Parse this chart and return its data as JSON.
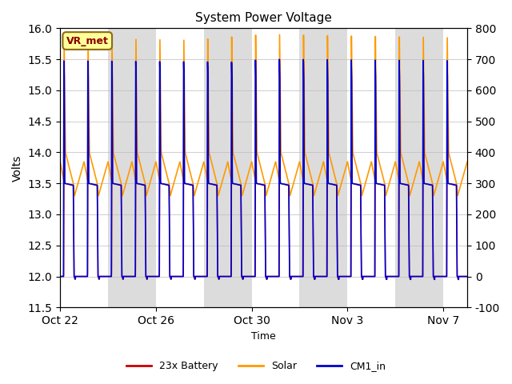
{
  "title": "System Power Voltage",
  "xlabel": "Time",
  "ylabel_left": "Volts",
  "ylim_left": [
    11.5,
    16.0
  ],
  "ylim_right": [
    -100,
    800
  ],
  "xtick_labels": [
    "Oct 22",
    "Oct 26",
    "Oct 30",
    "Nov 3",
    "Nov 7"
  ],
  "xtick_positions": [
    0,
    4,
    8,
    12,
    16
  ],
  "yticks_left": [
    11.5,
    12.0,
    12.5,
    13.0,
    13.5,
    14.0,
    14.5,
    15.0,
    15.5,
    16.0
  ],
  "yticks_right": [
    -100,
    0,
    100,
    200,
    300,
    400,
    500,
    600,
    700,
    800
  ],
  "n_days": 17,
  "colors": {
    "battery": "#cc0000",
    "solar": "#ff9900",
    "cm1": "#0000cc",
    "shade_gray": "#dcdcdc",
    "shade_white": "#ffffff"
  },
  "annotation_text": "VR_met",
  "legend_entries": [
    "23x Battery",
    "Solar",
    "CM1_in"
  ],
  "background_color": "#ffffff"
}
